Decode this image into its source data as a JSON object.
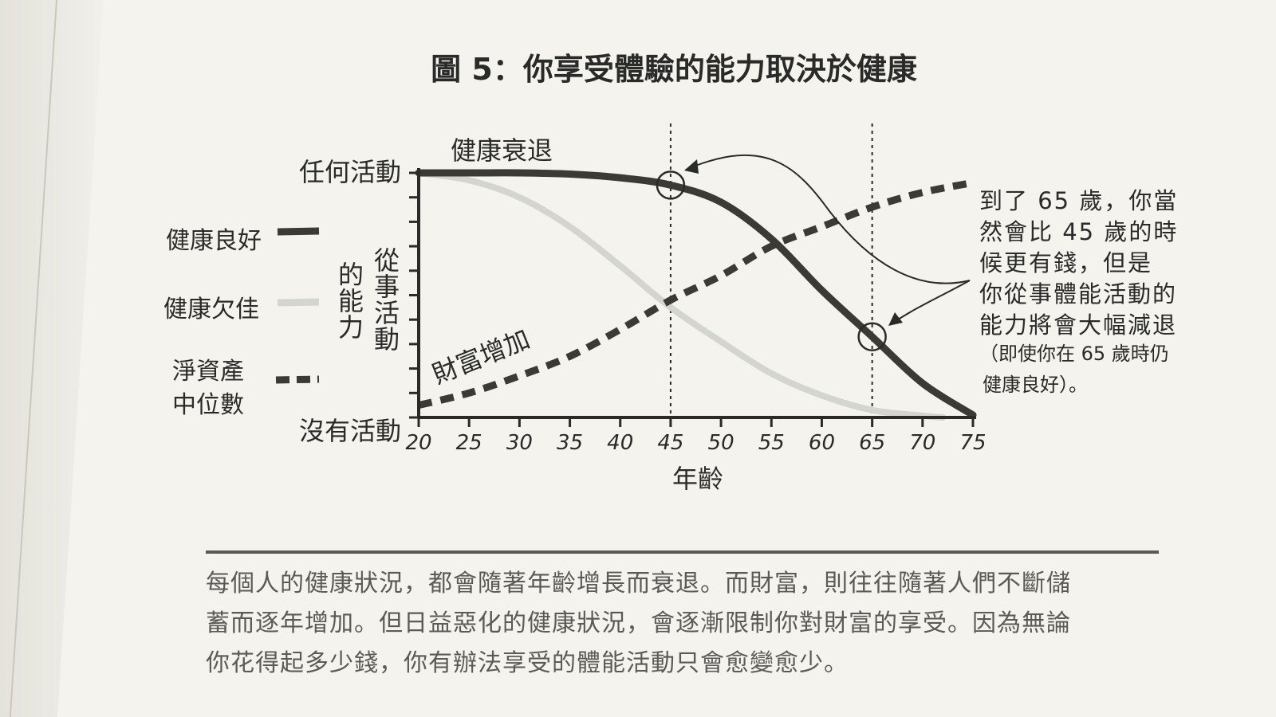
{
  "chart_data": {
    "type": "line",
    "title": "圖 5：你享受體驗的能力取決於健康",
    "xlabel": "年齡",
    "ylabel": "從事活動的能力",
    "ylabel_lines": [
      "從事",
      "活動",
      "的能",
      "力"
    ],
    "x_ticks": [
      20,
      25,
      30,
      35,
      40,
      45,
      50,
      55,
      60,
      65,
      70,
      75
    ],
    "xlim": [
      20,
      75
    ],
    "ylim": [
      0,
      100
    ],
    "y_top_label": "任何活動",
    "y_bottom_label": "沒有活動",
    "vertical_markers": [
      45,
      65
    ],
    "series": [
      {
        "name": "健康良好",
        "style": "solid-dark",
        "color": "#3b3a34",
        "x": [
          20,
          25,
          30,
          35,
          40,
          45,
          50,
          55,
          60,
          65,
          70,
          75
        ],
        "y": [
          100,
          100,
          100,
          99.5,
          98,
          95,
          88,
          73,
          52,
          33,
          14,
          1
        ]
      },
      {
        "name": "健康欠佳",
        "style": "solid-light",
        "color": "#d4d5ce",
        "x": [
          20,
          25,
          30,
          35,
          40,
          45,
          50,
          55,
          60,
          65,
          70,
          72
        ],
        "y": [
          100,
          97,
          90,
          78,
          62,
          45,
          31,
          18,
          9,
          3,
          0.7,
          0
        ]
      },
      {
        "name": "淨資產中位數",
        "name_lines": [
          "淨資產",
          "中位數"
        ],
        "style": "dashed",
        "color": "#3b3a34",
        "x": [
          20,
          25,
          30,
          35,
          40,
          45,
          50,
          55,
          60,
          65,
          70,
          75
        ],
        "y": [
          5,
          10,
          17,
          25,
          36,
          48,
          58,
          70,
          78,
          86,
          92,
          96
        ]
      }
    ],
    "annotations": {
      "decline": "健康衰退",
      "wealth": "財富增加",
      "note_lines": [
        "到了 65 歲，你當",
        "然會比 45 歲的時",
        "候更有錢，但是",
        "你從事體能活動的",
        "能力將會大幅減退"
      ],
      "note_small_lines": [
        "（即使你在 65 歲時仍",
        "健康良好）。"
      ]
    }
  },
  "caption_lines": [
    "每個人的健康狀況，都會隨著年齡增長而衰退。而財富，則往往隨著人們不斷儲",
    "蓄而逐年增加。但日益惡化的健康狀況，會逐漸限制你對財富的享受。因為無論",
    "你花得起多少錢，你有辦法享受的體能活動只會愈變愈少。"
  ]
}
